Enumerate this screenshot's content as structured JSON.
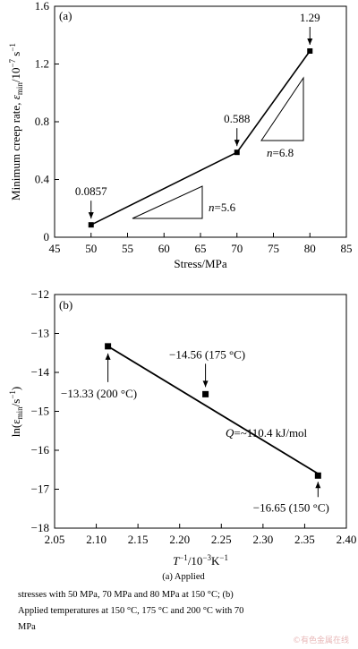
{
  "chart_data": [
    {
      "type": "line",
      "panel_label": "(a)",
      "xlabel": "Stress/MPa",
      "ylabel_main": "Minimum creep rate,",
      "ylabel_tail": "/10",
      "ylabel_sub": "min",
      "ylabel_exp": "−7",
      "ylabel_unit": "s",
      "ylabel_unit_exp": "−1",
      "xlim": [
        45,
        85
      ],
      "ylim": [
        0,
        1.6
      ],
      "x_ticks": [
        "45",
        "50",
        "55",
        "60",
        "65",
        "70",
        "75",
        "80",
        "85"
      ],
      "y_ticks": [
        "0",
        "0.4",
        "0.8",
        "1.2",
        "1.6"
      ],
      "series": [
        {
          "x": [
            50,
            70,
            80
          ],
          "y": [
            0.0857,
            0.588,
            1.29
          ]
        }
      ],
      "point_labels": [
        "0.0857",
        "0.588",
        "1.29"
      ],
      "slope_labels": [
        {
          "n": "n",
          "value": "=5.6"
        },
        {
          "n": "n",
          "value": "=6.8"
        }
      ]
    },
    {
      "type": "scatter",
      "panel_label": "(b)",
      "xlabel": "T",
      "xlabel_exp1": "−1",
      "xlabel_mid": "/10",
      "xlabel_exp2": "−3",
      "xlabel_unit": "K",
      "xlabel_exp3": "−1",
      "ylabel": "ln(ε",
      "ylabel_sub": "min",
      "ylabel_tail": "/s",
      "ylabel_exp": "−1",
      "ylabel_close": ")",
      "xlim": [
        2.05,
        2.4
      ],
      "ylim": [
        -18,
        -12
      ],
      "x_ticks": [
        "2.05",
        "2.10",
        "2.15",
        "2.20",
        "2.25",
        "2.30",
        "2.35",
        "2.40"
      ],
      "y_ticks": [
        "−12",
        "−13",
        "−14",
        "−15",
        "−16",
        "−17",
        "−18"
      ],
      "series": [
        {
          "x": [
            2.114,
            2.231,
            2.366
          ],
          "y": [
            -13.33,
            -14.56,
            -16.65
          ]
        }
      ],
      "fit_line": {
        "x": [
          2.114,
          2.366
        ],
        "y": [
          -13.33,
          -16.6
        ]
      },
      "point_labels": [
        "−13.33 (200 °C)",
        "−14.56 (175 °C)",
        "−16.65 (150 °C)"
      ],
      "annotation_q": "Q",
      "annotation_value": "=~110.4 kJ/mol"
    }
  ],
  "caption": {
    "line1": "(a) Applied",
    "line2": "stresses with 50 MPa, 70 MPa and 80 MPa at 150 °C; (b)",
    "line3": "Applied temperatures at 150 °C, 175 °C and 200 °C with 70",
    "line4": "MPa"
  },
  "watermark": "©有色金属在线"
}
